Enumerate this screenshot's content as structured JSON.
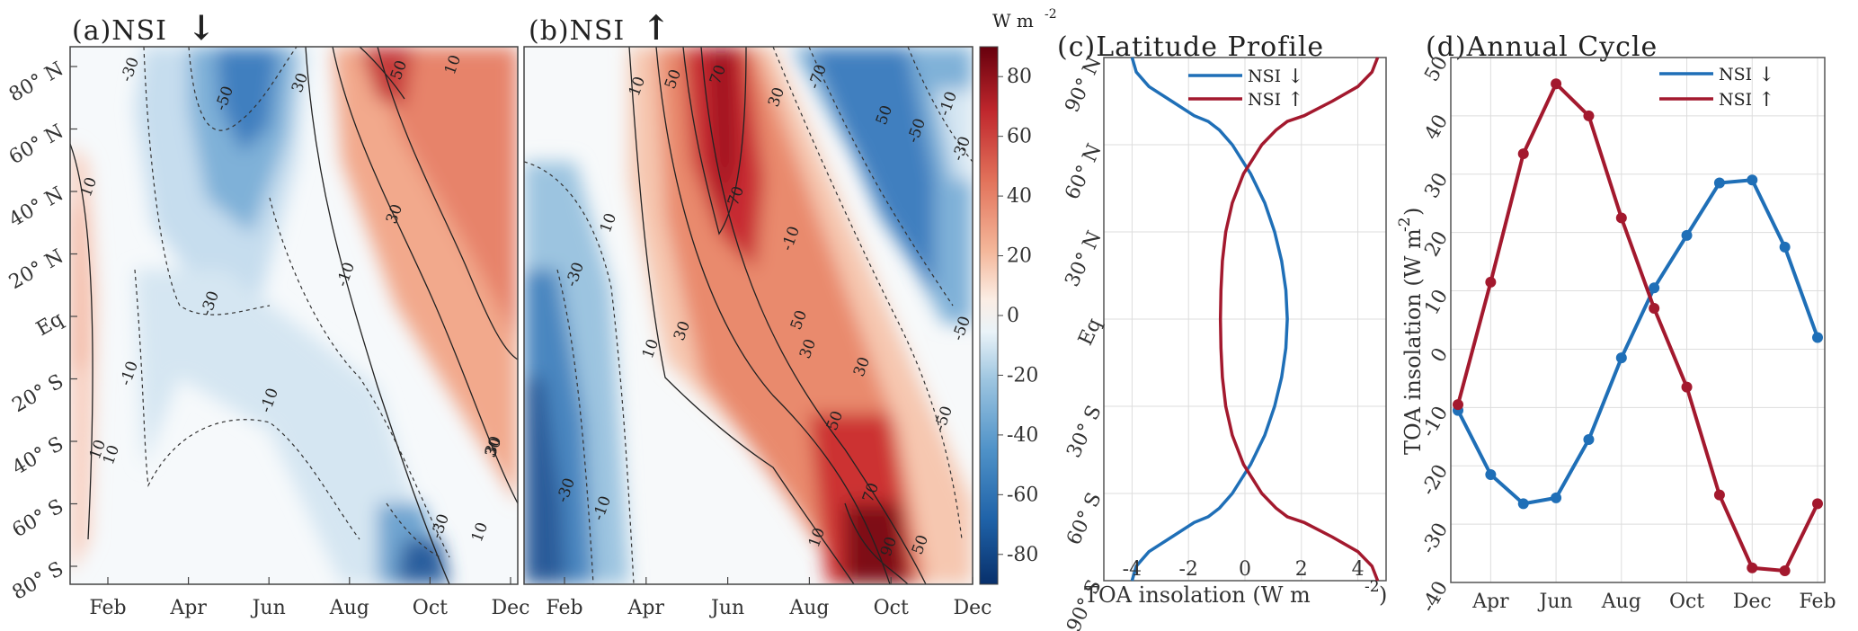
{
  "chart_data": [
    {
      "id": "a",
      "type": "heatmap",
      "title": "(a)NSI",
      "title_arrow": "↓",
      "x": [
        "Feb",
        "Apr",
        "Jun",
        "Aug",
        "Oct",
        "Dec"
      ],
      "y": [
        "80° N",
        "60° N",
        "40° N",
        "20° N",
        "Eq",
        "20° S",
        "40° S",
        "60° S",
        "80° S"
      ],
      "contour_labels": [
        "10",
        "-30",
        "-50",
        "30",
        "50",
        "10",
        "30",
        "-10",
        "10",
        "30",
        "-30",
        "-10",
        "-10",
        "10",
        "30",
        "10",
        "-30"
      ],
      "colorbar": {
        "units": "W m",
        "units_exp": "-2",
        "ticks": [
          "80",
          "60",
          "40",
          "20",
          "0",
          "-20",
          "-40",
          "-60",
          "-80"
        ],
        "range": [
          -90,
          90
        ]
      }
    },
    {
      "id": "b",
      "type": "heatmap",
      "title": "(b)NSI",
      "title_arrow": "↑",
      "x": [
        "Feb",
        "Apr",
        "Jun",
        "Aug",
        "Oct",
        "Dec"
      ],
      "contour_labels": [
        "10",
        "50",
        "70",
        "-70",
        "-10",
        "50",
        "30",
        "-50",
        "-30",
        "-30",
        "10",
        "70",
        "10",
        "30",
        "-10",
        "50",
        "-50",
        "30",
        "30",
        "50",
        "-50",
        "-30",
        "-10",
        "10",
        "70",
        "90",
        "50"
      ]
    },
    {
      "id": "c",
      "type": "line",
      "title": "(c)Latitude Profile",
      "xlabel": "TOA insolation (W m",
      "xlabel_exp": "-2",
      "xlabel_end": ")",
      "xticks": [
        "-4",
        "-2",
        "0",
        "2",
        "4"
      ],
      "xlim": [
        -5,
        5
      ],
      "yticks": [
        "90° N",
        "60° N",
        "30° N",
        "Eq",
        "30° S",
        "60° S",
        "90° S"
      ],
      "ylim": [
        -90,
        90
      ],
      "series": [
        {
          "name": "NSI",
          "arrow": "↓",
          "color": "#1f6fb7",
          "lat": [
            -90,
            -85,
            -80,
            -75,
            -70,
            -68,
            -65,
            -60,
            -50,
            -40,
            -30,
            -20,
            -10,
            0,
            10,
            20,
            30,
            40,
            50,
            60,
            65,
            68,
            70,
            75,
            80,
            85,
            90
          ],
          "values": [
            -4.0,
            -3.85,
            -3.4,
            -2.6,
            -1.8,
            -1.3,
            -0.9,
            -0.45,
            0.2,
            0.7,
            1.05,
            1.3,
            1.45,
            1.5,
            1.45,
            1.3,
            1.05,
            0.7,
            0.2,
            -0.45,
            -0.9,
            -1.3,
            -1.8,
            -2.6,
            -3.4,
            -3.85,
            -4.0
          ]
        },
        {
          "name": "NSI",
          "arrow": "↑",
          "color": "#a3192e",
          "lat": [
            -90,
            -85,
            -80,
            -75,
            -70,
            -68,
            -65,
            -60,
            -50,
            -40,
            -30,
            -20,
            -10,
            0,
            10,
            20,
            30,
            40,
            50,
            60,
            65,
            68,
            70,
            75,
            80,
            85,
            90
          ],
          "values": [
            4.7,
            4.5,
            4.0,
            3.1,
            2.1,
            1.5,
            1.1,
            0.6,
            -0.05,
            -0.45,
            -0.68,
            -0.8,
            -0.85,
            -0.87,
            -0.85,
            -0.8,
            -0.68,
            -0.45,
            -0.05,
            0.6,
            1.1,
            1.5,
            2.1,
            3.1,
            4.0,
            4.5,
            4.7
          ]
        }
      ]
    },
    {
      "id": "d",
      "type": "line",
      "title": "(d)Annual Cycle",
      "ylabel": "TOA insolation (W m",
      "ylabel_exp": "-2",
      "ylabel_end": ")",
      "ylim": [
        -40,
        50
      ],
      "yticks": [
        "50",
        "40",
        "30",
        "20",
        "10",
        "0",
        "-10",
        "-20",
        "-30",
        "-40"
      ],
      "xticks": [
        "Apr",
        "Jun",
        "Aug",
        "Oct",
        "Dec",
        "Feb"
      ],
      "series": [
        {
          "name": "NSI",
          "arrow": "↓",
          "color": "#1f6fb7",
          "values": [
            -10.5,
            -21.5,
            -26.5,
            -25.5,
            -15.5,
            -1.5,
            10.5,
            19.5,
            28.5,
            29.0,
            17.5,
            2.0
          ]
        },
        {
          "name": "NSI",
          "arrow": "↑",
          "color": "#a3192e",
          "values": [
            -9.5,
            11.5,
            33.5,
            45.5,
            40.0,
            22.5,
            7.0,
            -6.5,
            -25.0,
            -37.5,
            -38.0,
            -26.5
          ]
        }
      ]
    }
  ]
}
